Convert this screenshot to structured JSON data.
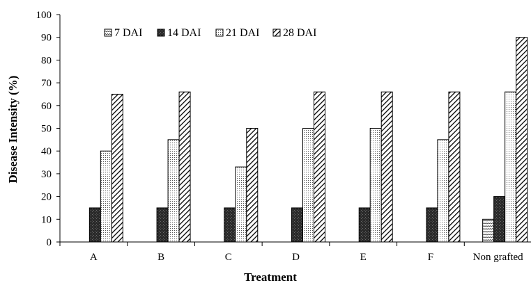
{
  "chart_data": {
    "type": "bar",
    "title": "",
    "xlabel": "Treatment",
    "ylabel": "Disease Intensity (%)",
    "ylim": [
      0,
      100
    ],
    "yticks": [
      0,
      10,
      20,
      30,
      40,
      50,
      60,
      70,
      80,
      90,
      100
    ],
    "categories": [
      "A",
      "B",
      "C",
      "D",
      "E",
      "F",
      "Non grafted"
    ],
    "series": [
      {
        "name": "7 DAI",
        "pattern": "wave",
        "values": [
          0,
          0,
          0,
          0,
          0,
          0,
          10
        ]
      },
      {
        "name": "14 DAI",
        "pattern": "dark",
        "values": [
          15,
          15,
          15,
          15,
          15,
          15,
          20
        ]
      },
      {
        "name": "21 DAI",
        "pattern": "dots",
        "values": [
          40,
          45,
          33,
          50,
          50,
          45,
          66
        ]
      },
      {
        "name": "28 DAI",
        "pattern": "hatch",
        "values": [
          65,
          66,
          50,
          66,
          66,
          66,
          90
        ]
      }
    ],
    "legend_position": "top-left",
    "grid": false
  }
}
